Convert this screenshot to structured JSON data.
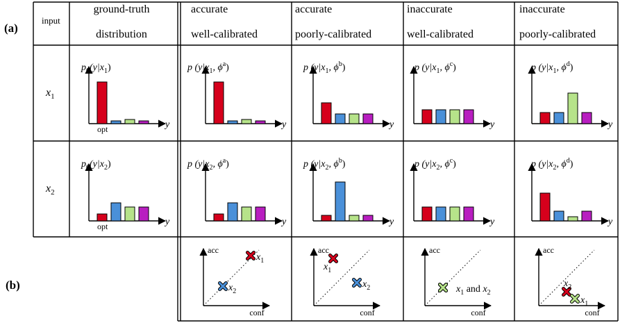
{
  "panel_labels": {
    "a": "(a)",
    "b": "(b)"
  },
  "header": {
    "input": "input",
    "gt_line1": "ground-truth",
    "gt_line2": "distribution",
    "col1_line1": "accurate",
    "col1_line2": "well-calibrated",
    "col2_line1": "accurate",
    "col2_line2": "poorly-calibrated",
    "col3_line1": "inaccurate",
    "col3_line2": "well-calibrated",
    "col4_line1": "inaccurate",
    "col4_line2": "poorly-calibrated"
  },
  "rows": [
    {
      "input_label": "x",
      "input_sub": "1",
      "gt_formula": {
        "pre": "p",
        "sub": "0",
        "mid": "(y|x",
        "sub2": "1",
        "post": ")"
      },
      "formulas": [
        {
          "pre": "p (y|x",
          "sub": "1",
          "mid": ", ϕ",
          "sup": "a",
          "post": ")"
        },
        {
          "pre": "p (y|x",
          "sub": "1",
          "mid": ", ϕ",
          "sup": "b",
          "post": ")"
        },
        {
          "pre": "p (y|x",
          "sub": "1",
          "mid": ", ϕ",
          "sup": "c",
          "post": ")"
        },
        {
          "pre": "p (y|x",
          "sub": "1",
          "mid": ", ϕ",
          "sup": "d",
          "post": ")"
        }
      ]
    },
    {
      "input_label": "x",
      "input_sub": "2",
      "gt_formula": {
        "pre": "p",
        "sub": "0",
        "mid": "(y|x",
        "sub2": "2",
        "post": ")"
      },
      "formulas": [
        {
          "pre": "p (y|x",
          "sub": "2",
          "mid": ", ϕ",
          "sup": "a",
          "post": ")"
        },
        {
          "pre": "p (y|x",
          "sub": "2",
          "mid": ", ϕ",
          "sup": "b",
          "post": ")"
        },
        {
          "pre": "p (y|x",
          "sub": "2",
          "mid": ", ϕ",
          "sup": "c",
          "post": ")"
        },
        {
          "pre": "p (y|x",
          "sub": "2",
          "mid": ", ϕ",
          "sup": "d",
          "post": ")"
        }
      ]
    }
  ],
  "bar_colors": [
    "#d6001c",
    "#4a90d9",
    "#b6e38a",
    "#b81ec0"
  ],
  "axis_y": "y",
  "opt_label": "opt",
  "chart_data": [
    {
      "type": "bar",
      "row": 1,
      "column": "ground-truth",
      "values": [
        0.6,
        0.04,
        0.06,
        0.04
      ],
      "annotation": "opt"
    },
    {
      "type": "bar",
      "row": 1,
      "column": "accurate well-calibrated",
      "values": [
        0.6,
        0.04,
        0.06,
        0.04
      ]
    },
    {
      "type": "bar",
      "row": 1,
      "column": "accurate poorly-calibrated",
      "values": [
        0.3,
        0.14,
        0.14,
        0.14
      ]
    },
    {
      "type": "bar",
      "row": 1,
      "column": "inaccurate well-calibrated",
      "values": [
        0.2,
        0.2,
        0.2,
        0.2
      ]
    },
    {
      "type": "bar",
      "row": 1,
      "column": "inaccurate poorly-calibrated",
      "values": [
        0.16,
        0.16,
        0.44,
        0.16
      ]
    },
    {
      "type": "bar",
      "row": 2,
      "column": "ground-truth",
      "values": [
        0.1,
        0.26,
        0.2,
        0.2
      ],
      "annotation": "opt"
    },
    {
      "type": "bar",
      "row": 2,
      "column": "accurate well-calibrated",
      "values": [
        0.1,
        0.26,
        0.2,
        0.2
      ]
    },
    {
      "type": "bar",
      "row": 2,
      "column": "accurate poorly-calibrated",
      "values": [
        0.08,
        0.56,
        0.08,
        0.08
      ]
    },
    {
      "type": "bar",
      "row": 2,
      "column": "inaccurate well-calibrated",
      "values": [
        0.2,
        0.2,
        0.2,
        0.2
      ]
    },
    {
      "type": "bar",
      "row": 2,
      "column": "inaccurate poorly-calibrated",
      "values": [
        0.4,
        0.14,
        0.06,
        0.14
      ]
    }
  ],
  "calibration": {
    "xlabel": "conf",
    "ylabel": "acc",
    "plots": [
      {
        "points": [
          {
            "label": "x",
            "sub": "1",
            "color": "#d6001c",
            "conf": 0.68,
            "acc": 0.72
          },
          {
            "label": "x",
            "sub": "2",
            "color": "#4a90d9",
            "conf": 0.28,
            "acc": 0.28
          }
        ]
      },
      {
        "points": [
          {
            "label": "x",
            "sub": "1",
            "color": "#d6001c",
            "conf": 0.28,
            "acc": 0.68
          },
          {
            "label": "x",
            "sub": "2",
            "color": "#4a90d9",
            "conf": 0.62,
            "acc": 0.33
          }
        ]
      },
      {
        "points": [
          {
            "label": "x",
            "sub": "1",
            "color": "#d6001c",
            "conf": 0.26,
            "acc": 0.26
          },
          {
            "label": "x",
            "sub": "2",
            "color": "#b6e38a",
            "conf": 0.26,
            "acc": 0.26
          }
        ],
        "joint_label": {
          "a": "x",
          "a_sub": "1",
          "and": "and",
          "b": "x",
          "b_sub": "2"
        }
      },
      {
        "points": [
          {
            "label": "x",
            "sub": "2",
            "color": "#d6001c",
            "conf": 0.4,
            "acc": 0.2
          },
          {
            "label": "x",
            "sub": "1",
            "color": "#b6e38a",
            "conf": 0.52,
            "acc": 0.1
          }
        ]
      }
    ]
  }
}
